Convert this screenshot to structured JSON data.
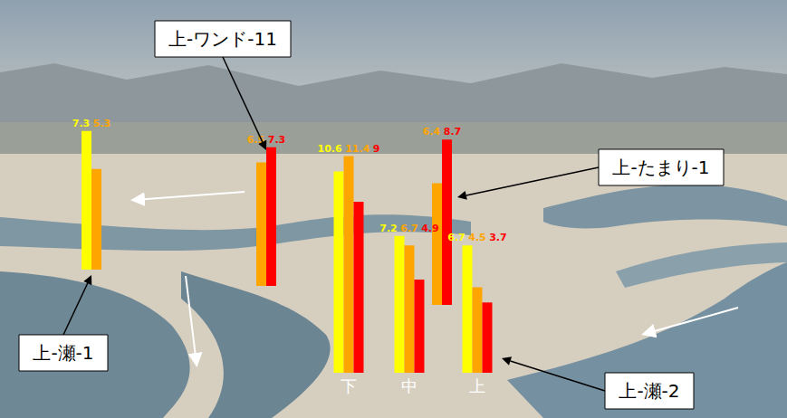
{
  "chart_data": [
    {
      "type": "bar",
      "annotation": "上-瀬-1",
      "values": [
        7.3,
        5.3
      ],
      "colors": [
        "#ffff00",
        "#ffa500"
      ],
      "ylim": [
        0,
        12
      ],
      "tick_labels": false,
      "data_labels": true
    },
    {
      "type": "bar",
      "annotation": "上-ワンド-11",
      "values": [
        6.5,
        7.3
      ],
      "colors": [
        "#ffa500",
        "#ff0000"
      ],
      "ylim": [
        0,
        12
      ],
      "tick_labels": false,
      "data_labels": true
    },
    {
      "type": "bar",
      "xlabel": "下",
      "values": [
        10.6,
        11.4,
        9
      ],
      "colors": [
        "#ffff00",
        "#ffa500",
        "#ff0000"
      ],
      "ylim": [
        0,
        12
      ],
      "tick_labels": false,
      "data_labels": true
    },
    {
      "type": "bar",
      "xlabel": "中",
      "values": [
        7.2,
        6.7,
        4.9
      ],
      "colors": [
        "#ffff00",
        "#ffa500",
        "#ff0000"
      ],
      "ylim": [
        0,
        12
      ],
      "tick_labels": false,
      "data_labels": true
    },
    {
      "type": "bar",
      "annotation": "上-たまり-1",
      "values": [
        6.4,
        8.7
      ],
      "colors": [
        "#ffa500",
        "#ff0000"
      ],
      "ylim": [
        0,
        12
      ],
      "tick_labels": false,
      "data_labels": true
    },
    {
      "type": "bar",
      "xlabel": "上",
      "annotation": "上-瀬-2",
      "values": [
        6.7,
        4.5,
        3.7
      ],
      "colors": [
        "#ffff00",
        "#ffa500",
        "#ff0000"
      ],
      "ylim": [
        0,
        12
      ],
      "tick_labels": false,
      "data_labels": true
    }
  ]
}
